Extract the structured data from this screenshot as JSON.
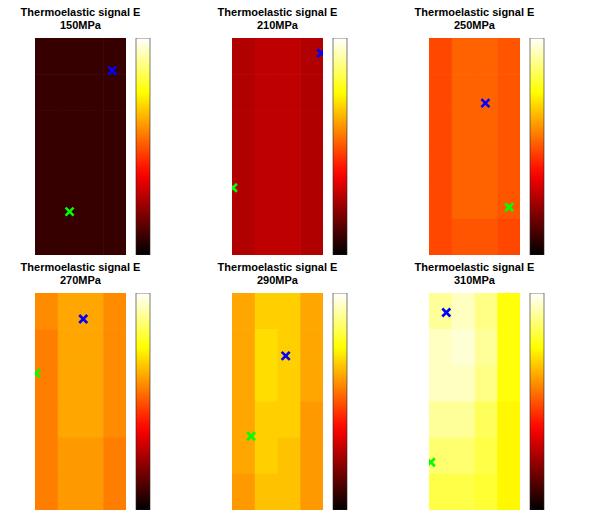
{
  "chart_data": [
    {
      "type": "heatmap",
      "title": "Thermoelastic signal E",
      "subtitle": "150MPa",
      "cells": [
        [
          0.29,
          0.29,
          0.29,
          0.29
        ],
        [
          0.29,
          0.29,
          0.29,
          0.29
        ],
        [
          0.29,
          0.29,
          0.29,
          0.29
        ],
        [
          0.29,
          0.29,
          0.29,
          0.29
        ],
        [
          0.29,
          0.29,
          0.29,
          0.29
        ],
        [
          0.29,
          0.29,
          0.29,
          0.29
        ]
      ],
      "colorbar": {
        "range": [
          0.25,
          0.75
        ],
        "ticks": [
          0.3,
          0.4,
          0.5,
          0.6,
          0.7
        ]
      },
      "markers": [
        {
          "color": "#0000ff",
          "marker": "x",
          "x": 0.85,
          "y": 0.15
        },
        {
          "color": "#00ff00",
          "marker": "x",
          "x": 0.38,
          "y": 0.8
        }
      ],
      "tick_labels": false
    },
    {
      "type": "heatmap",
      "title": "Thermoelastic signal E",
      "subtitle": "210MPa",
      "cells": [
        [
          0.38,
          0.39,
          0.39,
          0.38
        ],
        [
          0.38,
          0.39,
          0.39,
          0.38
        ],
        [
          0.38,
          0.39,
          0.39,
          0.38
        ],
        [
          0.38,
          0.39,
          0.39,
          0.38
        ],
        [
          0.38,
          0.39,
          0.39,
          0.38
        ],
        [
          0.38,
          0.39,
          0.39,
          0.38
        ]
      ],
      "colorbar": {
        "range": [
          0.25,
          0.75
        ],
        "ticks": [
          0.3,
          0.4,
          0.5,
          0.6,
          0.7
        ]
      },
      "markers": [
        {
          "color": "#0000ff",
          "marker": "x",
          "x": 0.98,
          "y": 0.07
        },
        {
          "color": "#00ff00",
          "marker": "x",
          "x": 0.01,
          "y": 0.69
        }
      ],
      "tick_labels": false
    },
    {
      "type": "heatmap",
      "title": "Thermoelastic signal E",
      "subtitle": "250MPa",
      "cells": [
        [
          0.49,
          0.51,
          0.51,
          0.5
        ],
        [
          0.49,
          0.51,
          0.51,
          0.5
        ],
        [
          0.49,
          0.51,
          0.51,
          0.5
        ],
        [
          0.49,
          0.51,
          0.51,
          0.5
        ],
        [
          0.49,
          0.51,
          0.51,
          0.5
        ],
        [
          0.49,
          0.5,
          0.5,
          0.49
        ]
      ],
      "colorbar": {
        "range": [
          0.25,
          0.75
        ],
        "ticks": [
          0.3,
          0.4,
          0.5,
          0.6,
          0.7
        ]
      },
      "markers": [
        {
          "color": "#0000ff",
          "marker": "x",
          "x": 0.62,
          "y": 0.3
        },
        {
          "color": "#00ff00",
          "marker": "x",
          "x": 0.88,
          "y": 0.78
        }
      ],
      "tick_labels": false
    },
    {
      "type": "heatmap",
      "title": "Thermoelastic signal E",
      "subtitle": "270MPa",
      "cells": [
        [
          0.54,
          0.56,
          0.56,
          0.54
        ],
        [
          0.53,
          0.56,
          0.56,
          0.54
        ],
        [
          0.53,
          0.56,
          0.56,
          0.54
        ],
        [
          0.53,
          0.56,
          0.56,
          0.54
        ],
        [
          0.53,
          0.55,
          0.55,
          0.53
        ],
        [
          0.53,
          0.55,
          0.55,
          0.53
        ]
      ],
      "colorbar": {
        "range": [
          0.25,
          0.75
        ],
        "ticks": [
          0.3,
          0.4,
          0.5,
          0.6,
          0.7
        ]
      },
      "markers": [
        {
          "color": "#0000ff",
          "marker": "x",
          "x": 0.53,
          "y": 0.12
        },
        {
          "color": "#00ff00",
          "marker": "x",
          "x": 0.01,
          "y": 0.37
        }
      ],
      "tick_labels": false
    },
    {
      "type": "heatmap",
      "title": "Thermoelastic signal E",
      "subtitle": "290MPa",
      "cells": [
        [
          0.56,
          0.59,
          0.59,
          0.56
        ],
        [
          0.56,
          0.6,
          0.59,
          0.56
        ],
        [
          0.56,
          0.6,
          0.59,
          0.56
        ],
        [
          0.56,
          0.59,
          0.59,
          0.55
        ],
        [
          0.56,
          0.59,
          0.58,
          0.55
        ],
        [
          0.55,
          0.58,
          0.58,
          0.55
        ]
      ],
      "colorbar": {
        "range": [
          0.25,
          0.75
        ],
        "ticks": [
          0.3,
          0.4,
          0.5,
          0.6,
          0.7
        ]
      },
      "markers": [
        {
          "color": "#0000ff",
          "marker": "x",
          "x": 0.59,
          "y": 0.29
        },
        {
          "color": "#00ff00",
          "marker": "x",
          "x": 0.21,
          "y": 0.66
        }
      ],
      "tick_labels": false
    },
    {
      "type": "heatmap",
      "title": "Thermoelastic signal E",
      "subtitle": "310MPa",
      "cells": [
        [
          0.7,
          0.72,
          0.69,
          0.63
        ],
        [
          0.72,
          0.73,
          0.7,
          0.63
        ],
        [
          0.72,
          0.72,
          0.69,
          0.63
        ],
        [
          0.7,
          0.7,
          0.67,
          0.62
        ],
        [
          0.68,
          0.68,
          0.66,
          0.62
        ],
        [
          0.66,
          0.66,
          0.65,
          0.62
        ]
      ],
      "colorbar": {
        "range": [
          0.25,
          0.75
        ],
        "ticks": [
          0.3,
          0.4,
          0.5,
          0.6,
          0.7
        ]
      },
      "markers": [
        {
          "color": "#0000ff",
          "marker": "x",
          "x": 0.19,
          "y": 0.09
        },
        {
          "color": "#00ff00",
          "marker": "x",
          "x": 0.02,
          "y": 0.78
        }
      ],
      "tick_labels": false
    }
  ]
}
